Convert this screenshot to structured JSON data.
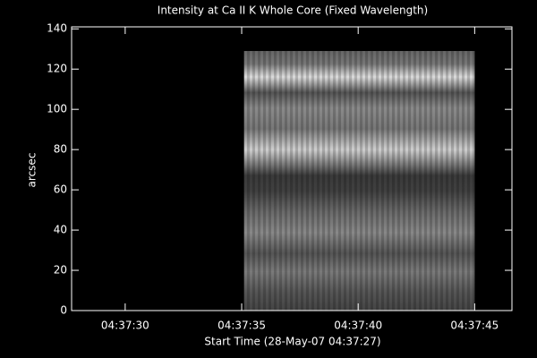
{
  "chart_data": {
    "type": "image",
    "title": "Intensity at Ca II K Whole Core (Fixed Wavelength)",
    "x_label": "Start Time (28-May-07 04:37:27)",
    "y_label": "arcsec",
    "xlim": [
      0.7,
      19.6
    ],
    "xticks": [
      {
        "value": 3,
        "label": "04:37:30"
      },
      {
        "value": 8,
        "label": "04:37:35"
      },
      {
        "value": 13,
        "label": "04:37:40"
      },
      {
        "value": 18,
        "label": "04:37:45"
      }
    ],
    "ylim": [
      0,
      141
    ],
    "yticks": [
      0,
      20,
      40,
      60,
      80,
      100,
      120,
      140
    ],
    "image": {
      "xlim": [
        8.1,
        18.0
      ],
      "ylim": [
        0,
        129
      ]
    }
  }
}
